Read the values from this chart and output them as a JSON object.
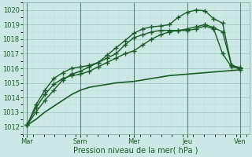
{
  "bg_color": "#cce8e4",
  "grid_color_major": "#a8ccc8",
  "grid_color_minor": "#bddbd7",
  "line_color": "#1a5c28",
  "xlabel": "Pression niveau de la mer( hPa )",
  "ylim": [
    1011.5,
    1020.5
  ],
  "yticks": [
    1012,
    1013,
    1014,
    1015,
    1016,
    1017,
    1018,
    1019,
    1020
  ],
  "day_labels": [
    "Mar",
    "Sam",
    "Mer",
    "Jeu",
    "Ven"
  ],
  "day_positions": [
    0,
    60,
    120,
    180,
    240
  ],
  "xlim": [
    -5,
    250
  ],
  "series": [
    {
      "x": [
        0,
        10,
        20,
        30,
        40,
        50,
        60,
        70,
        80,
        90,
        100,
        110,
        120,
        130,
        140,
        150,
        160,
        170,
        180,
        190,
        200,
        210,
        220,
        230,
        240
      ],
      "y": [
        1012.1,
        1012.5,
        1013.0,
        1013.4,
        1013.8,
        1014.2,
        1014.5,
        1014.7,
        1014.8,
        1014.9,
        1015.0,
        1015.05,
        1015.1,
        1015.2,
        1015.3,
        1015.4,
        1015.5,
        1015.55,
        1015.6,
        1015.65,
        1015.7,
        1015.75,
        1015.8,
        1015.85,
        1015.9
      ],
      "marker": null,
      "lw": 1.2
    },
    {
      "x": [
        0,
        10,
        20,
        30,
        40,
        50,
        60,
        70,
        80,
        90,
        100,
        110,
        120,
        130,
        140,
        150,
        160,
        170,
        180,
        190,
        200,
        210,
        220,
        230,
        240
      ],
      "y": [
        1012.1,
        1013.3,
        1014.2,
        1014.9,
        1015.3,
        1015.5,
        1015.6,
        1015.8,
        1016.1,
        1016.4,
        1016.7,
        1017.0,
        1017.2,
        1017.6,
        1018.0,
        1018.3,
        1018.5,
        1018.6,
        1018.7,
        1018.85,
        1019.0,
        1018.8,
        1018.5,
        1016.2,
        1015.9
      ],
      "marker": "+",
      "lw": 1.0
    },
    {
      "x": [
        0,
        10,
        20,
        30,
        40,
        50,
        60,
        70,
        80,
        90,
        100,
        110,
        120,
        130,
        140,
        150,
        160,
        170,
        180,
        190,
        200,
        210,
        220,
        230,
        240
      ],
      "y": [
        1012.1,
        1013.5,
        1014.5,
        1015.3,
        1015.7,
        1016.0,
        1016.1,
        1016.2,
        1016.4,
        1016.7,
        1017.0,
        1017.6,
        1018.1,
        1018.3,
        1018.5,
        1018.6,
        1018.6,
        1018.6,
        1018.6,
        1018.7,
        1018.9,
        1018.7,
        1017.0,
        1016.1,
        1016.0
      ],
      "marker": "+",
      "lw": 1.0
    },
    {
      "x": [
        0,
        10,
        20,
        30,
        40,
        50,
        60,
        70,
        80,
        90,
        100,
        110,
        120,
        130,
        140,
        150,
        160,
        170,
        180,
        190,
        200,
        210,
        220,
        230,
        240
      ],
      "y": [
        1012.1,
        1013.0,
        1013.8,
        1014.5,
        1015.2,
        1015.6,
        1015.8,
        1016.1,
        1016.4,
        1016.9,
        1017.4,
        1017.9,
        1018.4,
        1018.7,
        1018.85,
        1018.9,
        1019.0,
        1019.5,
        1019.85,
        1020.0,
        1019.95,
        1019.4,
        1019.1,
        1016.2,
        1016.05
      ],
      "marker": "+",
      "lw": 1.0
    }
  ],
  "marker_size": 4,
  "tick_fontsize": 6,
  "xlabel_fontsize": 7,
  "tick_color": "#1a5c28",
  "spine_color": "#7aaa99"
}
